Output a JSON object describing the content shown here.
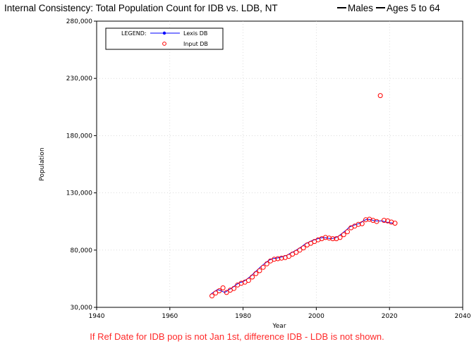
{
  "chart_data": {
    "type": "line",
    "title": "Internal Consistency: Total Population Count for IDB vs. LDB, NT",
    "title_series_labels": [
      "Males",
      "Ages 5 to 64"
    ],
    "xlabel": "Year",
    "ylabel": "Population",
    "xlim": [
      1940,
      2040
    ],
    "ylim": [
      30000,
      280000
    ],
    "x_ticks": [
      {
        "value": 1940,
        "label": "1940"
      },
      {
        "value": 1960,
        "label": "1960"
      },
      {
        "value": 1980,
        "label": "1980"
      },
      {
        "value": 2000,
        "label": "2000"
      },
      {
        "value": 2020,
        "label": "2020"
      },
      {
        "value": 2040,
        "label": "2040"
      }
    ],
    "y_ticks": [
      {
        "value": 30000,
        "label": "30,000"
      },
      {
        "value": 80000,
        "label": "80,000"
      },
      {
        "value": 130000,
        "label": "130,000"
      },
      {
        "value": 180000,
        "label": "180,000"
      },
      {
        "value": 230000,
        "label": "230,000"
      },
      {
        "value": 280000,
        "label": "280,000"
      }
    ],
    "grid": true,
    "legend": {
      "placement": "top-left",
      "heading": "LEGEND:",
      "entries": [
        "Lexis DB",
        "Input DB"
      ]
    },
    "series": [
      {
        "name": "Lexis DB",
        "style": "line",
        "color": "#0000ff",
        "x": [
          1971,
          1972,
          1973,
          1974,
          1975,
          1976,
          1977,
          1978,
          1979,
          1980,
          1981,
          1982,
          1983,
          1984,
          1985,
          1986,
          1987,
          1988,
          1989,
          1990,
          1991,
          1992,
          1993,
          1994,
          1995,
          1996,
          1997,
          1998,
          1999,
          2000,
          2001,
          2002,
          2003,
          2004,
          2005,
          2006,
          2007,
          2008,
          2009,
          2010,
          2011,
          2012,
          2013,
          2014,
          2015,
          2016,
          2017,
          2018,
          2019,
          2020,
          2021
        ],
        "y": [
          41000,
          43500,
          45500,
          44500,
          43000,
          45000,
          47000,
          49500,
          51500,
          52500,
          54500,
          57000,
          60000,
          63000,
          66000,
          68500,
          71000,
          72500,
          73000,
          73500,
          74500,
          75500,
          77500,
          79000,
          81000,
          83000,
          85500,
          87000,
          88500,
          89500,
          90500,
          91000,
          90500,
          90000,
          90500,
          92000,
          94500,
          97000,
          100000,
          101500,
          102500,
          103500,
          106000,
          107000,
          106500,
          105500,
          105500,
          105500,
          104500,
          104000,
          103500
        ]
      },
      {
        "name": "Input DB",
        "style": "markers",
        "color": "#ff0000",
        "x": [
          1971.5,
          1972.5,
          1973.5,
          1974.5,
          1975.5,
          1976.5,
          1977.5,
          1978.5,
          1979.5,
          1980.5,
          1981.5,
          1982.5,
          1983.5,
          1984.5,
          1985.5,
          1986.5,
          1987.5,
          1988.5,
          1989.5,
          1990.5,
          1991.5,
          1992.5,
          1993.5,
          1994.5,
          1995.5,
          1996.5,
          1997.5,
          1998.5,
          1999.5,
          2000.5,
          2001.5,
          2002.5,
          2003.5,
          2004.5,
          2005.5,
          2006.5,
          2007.5,
          2008.5,
          2009.5,
          2010.5,
          2011.5,
          2012.5,
          2013.5,
          2014.5,
          2015.5,
          2016.5,
          2017.5,
          2018.5,
          2019.5,
          2020.5,
          2021.5
        ],
        "y": [
          40000,
          42500,
          44500,
          47000,
          43000,
          45000,
          46500,
          49500,
          51000,
          52000,
          53500,
          56500,
          59500,
          62000,
          65000,
          68000,
          70500,
          72000,
          72500,
          73000,
          73500,
          74500,
          76500,
          78000,
          80000,
          82000,
          84500,
          86000,
          87500,
          89000,
          90000,
          91000,
          90500,
          90000,
          90000,
          91000,
          93500,
          96000,
          99500,
          101000,
          102500,
          103000,
          106500,
          107000,
          106000,
          105000,
          215000,
          106000,
          105500,
          104500,
          103500
        ]
      }
    ]
  },
  "footnote": "If Ref Date for IDB pop is not Jan 1st, difference IDB - LDB is not shown."
}
